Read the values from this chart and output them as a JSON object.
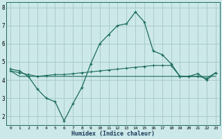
{
  "title": "",
  "xlabel": "Humidex (Indice chaleur)",
  "bg_color": "#cce8e8",
  "grid_color": "#aacccc",
  "line_color": "#1a6b5a",
  "x_values": [
    0,
    1,
    2,
    3,
    4,
    5,
    6,
    7,
    8,
    9,
    10,
    11,
    12,
    13,
    14,
    15,
    16,
    17,
    18,
    19,
    20,
    21,
    22,
    23
  ],
  "line1": [
    4.6,
    4.5,
    4.2,
    3.5,
    3.0,
    2.8,
    1.75,
    2.7,
    3.6,
    4.9,
    6.0,
    6.5,
    7.0,
    7.1,
    7.75,
    7.2,
    5.6,
    5.4,
    4.9,
    4.2,
    4.2,
    4.35,
    4.0,
    4.4
  ],
  "line2": [
    4.5,
    4.2,
    4.2,
    4.2,
    4.2,
    4.2,
    4.2,
    4.2,
    4.2,
    4.2,
    4.2,
    4.2,
    4.2,
    4.2,
    4.2,
    4.2,
    4.2,
    4.2,
    4.2,
    4.2,
    4.2,
    4.2,
    4.2,
    4.2
  ],
  "line3": [
    4.5,
    4.4,
    4.3,
    4.2,
    4.25,
    4.3,
    4.3,
    4.35,
    4.4,
    4.45,
    4.5,
    4.55,
    4.6,
    4.65,
    4.7,
    4.75,
    4.8,
    4.8,
    4.8,
    4.2,
    4.2,
    4.2,
    4.1,
    4.4
  ],
  "ylim": [
    1.5,
    8.3
  ],
  "yticks": [
    2,
    3,
    4,
    5,
    6,
    7,
    8
  ],
  "xtick_labels": [
    "0",
    "1",
    "2",
    "3",
    "4",
    "5",
    "6",
    "7",
    "8",
    "9",
    "10",
    "11",
    "12",
    "13",
    "14",
    "15",
    "16",
    "17",
    "18",
    "19",
    "20",
    "21",
    "22",
    "23"
  ]
}
